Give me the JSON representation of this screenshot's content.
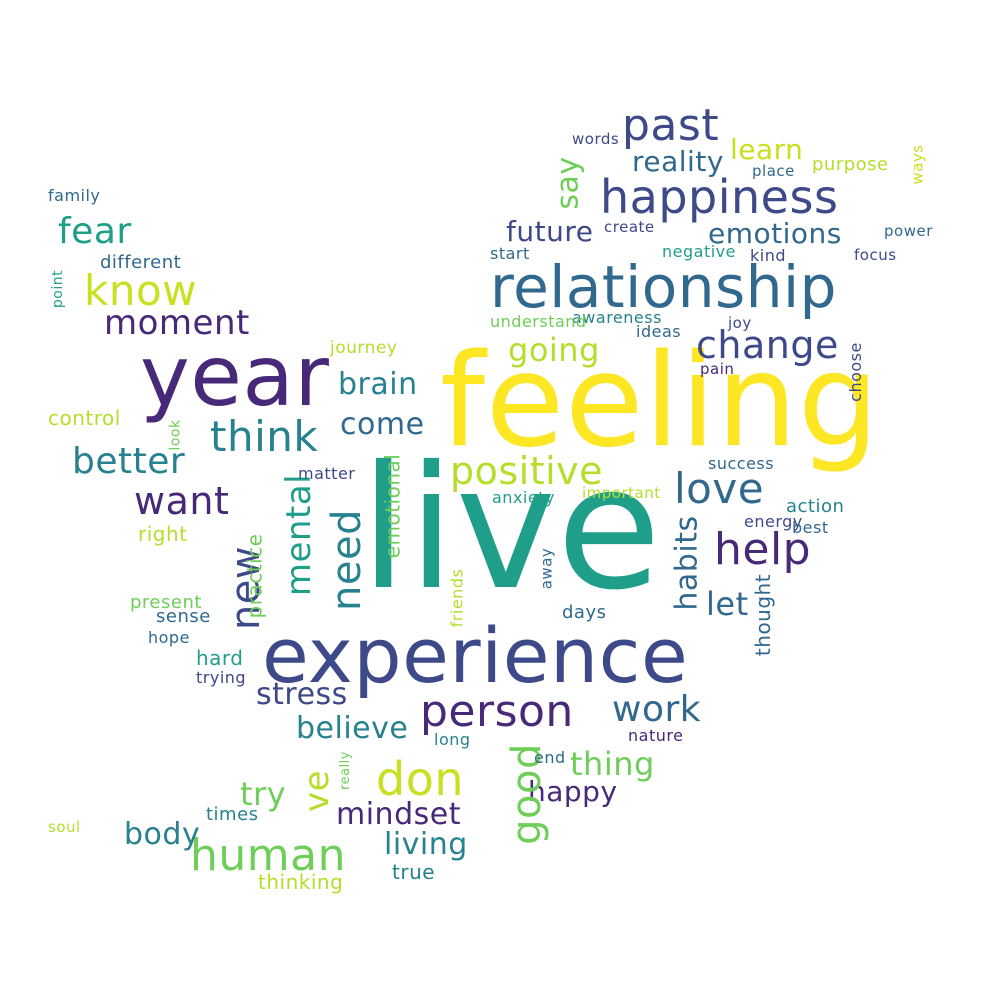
{
  "palette": {
    "purple": "#482878",
    "indigo": "#3e4989",
    "blue": "#31688e",
    "teal": "#26828e",
    "green": "#1f9e89",
    "lime": "#6ece58",
    "yellowgreen": "#b5de2b",
    "yellow": "#fde725"
  },
  "words": [
    {
      "text": "live",
      "color": "#1f9e89"
    },
    {
      "text": "feeling",
      "color": "#fde725"
    },
    {
      "text": "experience",
      "color": "#3e4989"
    },
    {
      "text": "year",
      "color": "#482878"
    },
    {
      "text": "relationship",
      "color": "#31688e"
    },
    {
      "text": "happiness",
      "color": "#3e4989"
    },
    {
      "text": "past",
      "color": "#3e4989"
    },
    {
      "text": "person",
      "color": "#482878"
    },
    {
      "text": "know",
      "color": "#c9e020"
    },
    {
      "text": "don",
      "color": "#c9e020"
    },
    {
      "text": "human",
      "color": "#6ece58"
    },
    {
      "text": "positive",
      "color": "#b5de2b"
    },
    {
      "text": "think",
      "color": "#26828e"
    },
    {
      "text": "love",
      "color": "#31688e"
    },
    {
      "text": "help",
      "color": "#482878"
    },
    {
      "text": "change",
      "color": "#3e4989"
    },
    {
      "text": "want",
      "color": "#482878"
    },
    {
      "text": "better",
      "color": "#26828e"
    },
    {
      "text": "going",
      "color": "#b5de2b"
    },
    {
      "text": "emotions",
      "color": "#31688e"
    },
    {
      "text": "moment",
      "color": "#482878"
    },
    {
      "text": "fear",
      "color": "#1f9e89"
    },
    {
      "text": "come",
      "color": "#31688e"
    },
    {
      "text": "work",
      "color": "#31688e"
    },
    {
      "text": "future",
      "color": "#3e4989"
    },
    {
      "text": "brain",
      "color": "#26828e"
    },
    {
      "text": "mindset",
      "color": "#482878"
    },
    {
      "text": "stress",
      "color": "#3e4989"
    },
    {
      "text": "believe",
      "color": "#26828e"
    },
    {
      "text": "thing",
      "color": "#6ece58"
    },
    {
      "text": "body",
      "color": "#26828e"
    },
    {
      "text": "living",
      "color": "#26828e"
    },
    {
      "text": "happy",
      "color": "#482878"
    },
    {
      "text": "reality",
      "color": "#31688e"
    },
    {
      "text": "learn",
      "color": "#c9e020"
    },
    {
      "text": "try",
      "color": "#6ece58"
    },
    {
      "text": "let",
      "color": "#31688e"
    },
    {
      "text": "good",
      "color": "#6ece58"
    },
    {
      "text": "new",
      "color": "#3e4989"
    },
    {
      "text": "need",
      "color": "#26828e"
    },
    {
      "text": "mental",
      "color": "#1f9e89"
    },
    {
      "text": "habits",
      "color": "#31688e"
    },
    {
      "text": "ve",
      "color": "#b5de2b"
    },
    {
      "text": "say",
      "color": "#6ece58"
    },
    {
      "text": "emotional",
      "color": "#6ece58"
    },
    {
      "text": "thought",
      "color": "#31688e"
    },
    {
      "text": "practice",
      "color": "#6ece58"
    },
    {
      "text": "control",
      "color": "#b5de2b"
    },
    {
      "text": "different",
      "color": "#31688e"
    },
    {
      "text": "journey",
      "color": "#b5de2b"
    },
    {
      "text": "purpose",
      "color": "#b5de2b"
    },
    {
      "text": "right",
      "color": "#b5de2b"
    },
    {
      "text": "present",
      "color": "#6ece58"
    },
    {
      "text": "sense",
      "color": "#31688e"
    },
    {
      "text": "hard",
      "color": "#1f9e89"
    },
    {
      "text": "trying",
      "color": "#3e4989"
    },
    {
      "text": "hope",
      "color": "#31688e"
    },
    {
      "text": "times",
      "color": "#26828e"
    },
    {
      "text": "thinking",
      "color": "#b5de2b"
    },
    {
      "text": "true",
      "color": "#26828e"
    },
    {
      "text": "soul",
      "color": "#b5de2b"
    },
    {
      "text": "long",
      "color": "#26828e"
    },
    {
      "text": "end",
      "color": "#31688e"
    },
    {
      "text": "nature",
      "color": "#482878"
    },
    {
      "text": "days",
      "color": "#31688e"
    },
    {
      "text": "important",
      "color": "#b5de2b"
    },
    {
      "text": "anxiety",
      "color": "#1f9e89"
    },
    {
      "text": "matter",
      "color": "#3e4989"
    },
    {
      "text": "success",
      "color": "#31688e"
    },
    {
      "text": "action",
      "color": "#26828e"
    },
    {
      "text": "energy",
      "color": "#3e4989"
    },
    {
      "text": "best",
      "color": "#31688e"
    },
    {
      "text": "pain",
      "color": "#482878"
    },
    {
      "text": "joy",
      "color": "#3e4989"
    },
    {
      "text": "ideas",
      "color": "#31688e"
    },
    {
      "text": "awareness",
      "color": "#26828e"
    },
    {
      "text": "understand",
      "color": "#6ece58"
    },
    {
      "text": "focus",
      "color": "#3e4989"
    },
    {
      "text": "power",
      "color": "#31688e"
    },
    {
      "text": "kind",
      "color": "#3e4989"
    },
    {
      "text": "negative",
      "color": "#1f9e89"
    },
    {
      "text": "create",
      "color": "#3e4989"
    },
    {
      "text": "start",
      "color": "#31688e"
    },
    {
      "text": "words",
      "color": "#3e4989"
    },
    {
      "text": "place",
      "color": "#31688e"
    },
    {
      "text": "family",
      "color": "#31688e"
    },
    {
      "text": "choose",
      "color": "#3e4989"
    },
    {
      "text": "ways",
      "color": "#c9e020"
    },
    {
      "text": "point",
      "color": "#1f9e89"
    },
    {
      "text": "look",
      "color": "#6ece58"
    },
    {
      "text": "really",
      "color": "#6ece58"
    },
    {
      "text": "friends",
      "color": "#b5de2b"
    },
    {
      "text": "away",
      "color": "#31688e"
    }
  ]
}
